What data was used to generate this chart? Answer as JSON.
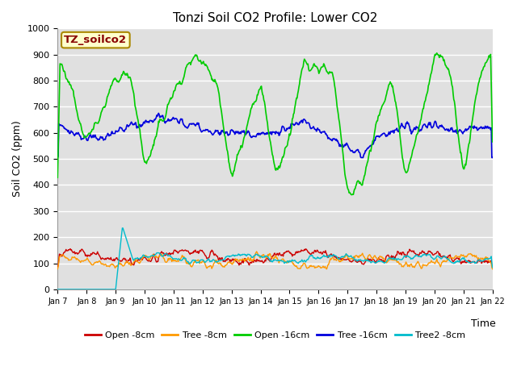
{
  "title": "Tonzi Soil CO2 Profile: Lower CO2",
  "ylabel": "Soil CO2 (ppm)",
  "xlabel": "Time",
  "annotation": "TZ_soilco2",
  "ylim": [
    0,
    1000
  ],
  "xlim": [
    0,
    15
  ],
  "bg_color": "#e0e0e0",
  "fig_bg": "#ffffff",
  "series": {
    "open_8cm": {
      "color": "#cc0000",
      "lw": 1.0
    },
    "tree_8cm": {
      "color": "#ff9900",
      "lw": 1.0
    },
    "open_16cm": {
      "color": "#00cc00",
      "lw": 1.2
    },
    "tree_16cm": {
      "color": "#0000dd",
      "lw": 1.2
    },
    "tree2_8cm": {
      "color": "#00bbcc",
      "lw": 1.0
    }
  },
  "legend": [
    {
      "label": "Open -8cm",
      "color": "#cc0000"
    },
    {
      "label": "Tree -8cm",
      "color": "#ff9900"
    },
    {
      "label": "Open -16cm",
      "color": "#00cc00"
    },
    {
      "label": "Tree -16cm",
      "color": "#0000dd"
    },
    {
      "label": "Tree2 -8cm",
      "color": "#00bbcc"
    }
  ],
  "xtick_labels": [
    "Jan 7",
    "Jan 8",
    "Jan 9",
    "Jan 10",
    "Jan 11",
    "Jan 12",
    "Jan 13",
    "Jan 14",
    "Jan 15",
    "Jan 16",
    "Jan 17",
    "Jan 18",
    "Jan 19",
    "Jan 20",
    "Jan 21",
    "Jan 22"
  ],
  "grid_color": "#ffffff",
  "grid_lw": 1.0,
  "seed": 12345,
  "n_points": 720
}
